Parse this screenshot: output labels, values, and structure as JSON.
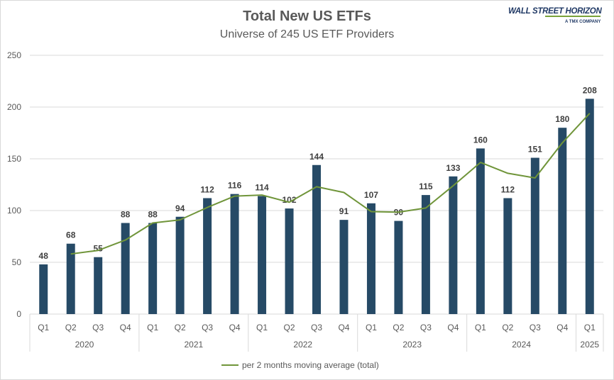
{
  "logo": {
    "name": "WALL STREET HORIZON",
    "company": "A TMX COMPANY"
  },
  "legend": {
    "line_label": "per 2 months moving average (total)"
  },
  "colors": {
    "bar": "#264a66",
    "line": "#70953a",
    "grid": "#d9d9d9",
    "text": "#595959"
  },
  "chart_data": {
    "type": "bar",
    "title": "Total New US ETFs",
    "subtitle": "Universe of 245 US ETF Providers",
    "xlabel": "",
    "ylabel": "",
    "ylim": [
      0,
      250
    ],
    "yticks": [
      0,
      50,
      100,
      150,
      200,
      250
    ],
    "grid": true,
    "legend_position": "bottom",
    "categories": [
      "Q1",
      "Q2",
      "Q3",
      "Q4",
      "Q1",
      "Q2",
      "Q3",
      "Q4",
      "Q1",
      "Q2",
      "Q3",
      "Q4",
      "Q1",
      "Q2",
      "Q3",
      "Q4",
      "Q1",
      "Q2",
      "Q3",
      "Q4",
      "Q1"
    ],
    "years": [
      {
        "label": "2020",
        "count": 4
      },
      {
        "label": "2021",
        "count": 4
      },
      {
        "label": "2022",
        "count": 4
      },
      {
        "label": "2023",
        "count": 4
      },
      {
        "label": "2024",
        "count": 4
      },
      {
        "label": "2025",
        "count": 1
      }
    ],
    "values": [
      48,
      68,
      55,
      88,
      88,
      94,
      112,
      116,
      114,
      102,
      144,
      91,
      107,
      90,
      115,
      133,
      160,
      112,
      151,
      180,
      208
    ],
    "series": [
      {
        "type": "bar",
        "values": [
          48,
          68,
          55,
          88,
          88,
          94,
          112,
          116,
          114,
          102,
          144,
          91,
          107,
          90,
          115,
          133,
          160,
          112,
          151,
          180,
          208
        ]
      },
      {
        "type": "line",
        "name": "per 2 months moving average (total)",
        "values": [
          null,
          58,
          61.5,
          71.5,
          88,
          91,
          103,
          114,
          115,
          108,
          123,
          117.5,
          99,
          98.5,
          102.5,
          124,
          146.5,
          136,
          131.5,
          165.5,
          194
        ]
      }
    ]
  }
}
